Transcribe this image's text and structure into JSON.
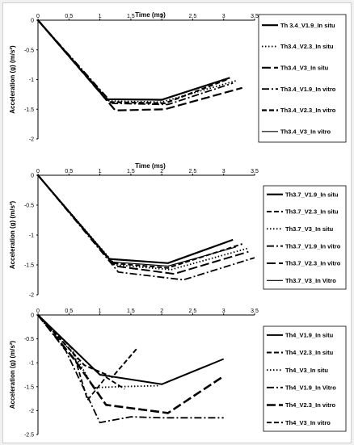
{
  "chart_data": [
    {
      "type": "line",
      "title": "",
      "xlabel": "Time (ms)",
      "ylabel": "Acceleration (g)  (m/s²)",
      "xlim": [
        0,
        3.5
      ],
      "ylim": [
        -2,
        0
      ],
      "xticks": [
        "0",
        "0.5",
        "1",
        "1.5",
        "2",
        "2.5",
        "3",
        "3.5"
      ],
      "yticks": [
        "0",
        "-0.5",
        "-1",
        "-1.5",
        "-2"
      ],
      "series": [
        {
          "name": "Th 3.4_V1.9_In situ",
          "dash": "solid",
          "width": 2.2,
          "x": [
            0,
            1.1,
            2.0,
            3.1
          ],
          "y": [
            0,
            -1.33,
            -1.34,
            -0.97
          ]
        },
        {
          "name": "Th3.4_V2.3_In situ",
          "dash": "dot",
          "width": 1.8,
          "x": [
            0,
            1.15,
            2.0,
            3.2
          ],
          "y": [
            0,
            -1.36,
            -1.38,
            -1.02
          ]
        },
        {
          "name": "Th3.4_V3_In situ",
          "dash": "longdash",
          "width": 2.2,
          "x": [
            0,
            1.25,
            2.05,
            3.3
          ],
          "y": [
            0,
            -1.52,
            -1.5,
            -1.14
          ]
        },
        {
          "name": "Th3.4_V1.9_In vitro",
          "dash": "dashdot",
          "width": 1.8,
          "x": [
            0,
            1.2,
            2.1,
            3.15
          ],
          "y": [
            0,
            -1.4,
            -1.42,
            -1.06
          ]
        },
        {
          "name": "Th3.4_V2.3_In vitro",
          "dash": "dash",
          "width": 2.2,
          "x": [
            0,
            1.15,
            2.05,
            3.05
          ],
          "y": [
            0,
            -1.38,
            -1.4,
            -1.0
          ]
        },
        {
          "name": "Th3.4_V3_In vitro",
          "dash": "solid",
          "width": 1.2,
          "x": [
            0,
            1.1,
            2.0,
            3.0
          ],
          "y": [
            0,
            -1.33,
            -1.35,
            -1.0
          ]
        }
      ]
    },
    {
      "type": "line",
      "title": "",
      "xlabel": "Time (ms)",
      "ylabel": "Acceleration (g)  (m/s²)",
      "xlim": [
        0,
        3.5
      ],
      "ylim": [
        -2,
        0
      ],
      "xticks": [
        "0",
        "0.5",
        "1",
        "1.5",
        "2",
        "2.5",
        "3",
        "3.5"
      ],
      "yticks": [
        "0",
        "-0.5",
        "-1",
        "-1.5",
        "-2"
      ],
      "series": [
        {
          "name": "Th3.7_V1.9_In situ",
          "dash": "solid",
          "width": 2.2,
          "x": [
            0,
            1.15,
            2.1,
            3.15
          ],
          "y": [
            0,
            -1.4,
            -1.47,
            -1.08
          ]
        },
        {
          "name": "Th3.7_V2.3_In situ",
          "dash": "dash",
          "width": 2.0,
          "x": [
            0,
            1.2,
            2.1,
            3.3
          ],
          "y": [
            0,
            -1.47,
            -1.55,
            -1.15
          ]
        },
        {
          "name": "Th3.7_V3_In situ",
          "dash": "dot",
          "width": 1.8,
          "x": [
            0,
            1.25,
            2.15,
            3.4
          ],
          "y": [
            0,
            -1.5,
            -1.58,
            -1.22
          ]
        },
        {
          "name": "Th3.7_V1.9_In vitro",
          "dash": "dashdot",
          "width": 1.8,
          "x": [
            0,
            1.3,
            2.35,
            3.5
          ],
          "y": [
            0,
            -1.62,
            -1.75,
            -1.38
          ]
        },
        {
          "name": "Th3.7_V2.3_In vitro",
          "dash": "longdash",
          "width": 2.0,
          "x": [
            0,
            1.25,
            2.2,
            3.4
          ],
          "y": [
            0,
            -1.52,
            -1.65,
            -1.28
          ]
        },
        {
          "name": "Th3.7_V3_In Vitro",
          "dash": "solid",
          "width": 1.2,
          "x": [
            0,
            1.2,
            2.1,
            3.2
          ],
          "y": [
            0,
            -1.45,
            -1.52,
            -1.2
          ]
        }
      ]
    },
    {
      "type": "line",
      "title": "",
      "xlabel": "",
      "ylabel": "Acceleration (g)  (m/s²)",
      "xlim": [
        0,
        3.5
      ],
      "ylim": [
        -2.5,
        0
      ],
      "xticks": [
        "0",
        "0.5",
        "1",
        "1.5",
        "2",
        "2.5",
        "3",
        "3.5"
      ],
      "yticks": [
        "0",
        "-0.5",
        "-1",
        "-1.5",
        "-2",
        "-2.5"
      ],
      "series": [
        {
          "name": "Th4_V1.9_In situ",
          "dash": "solid",
          "width": 2.0,
          "x": [
            0,
            1.0,
            2.0,
            3.0
          ],
          "y": [
            0,
            -1.25,
            -1.45,
            -0.92
          ]
        },
        {
          "name": "Th4_V2.3_In situ",
          "dash": "dash",
          "width": 2.0,
          "x": [
            0,
            0.75,
            1.2,
            1.6
          ],
          "y": [
            0,
            -1.05,
            -1.3,
            -0.7
          ]
        },
        {
          "name": "Th4_V3_In situ",
          "dash": "dot",
          "width": 1.8,
          "x": [
            0,
            0.6,
            0.9,
            1.3,
            1.95
          ],
          "y": [
            0,
            -0.85,
            -1.52,
            -1.5,
            -1.48
          ]
        },
        {
          "name": "Th4_V1.9_In Vitro",
          "dash": "dashdot",
          "width": 1.8,
          "x": [
            0,
            0.45,
            1.0,
            1.5,
            2.0,
            3.0
          ],
          "y": [
            0,
            -0.75,
            -2.25,
            -2.13,
            -2.15,
            -2.15
          ]
        },
        {
          "name": "Th4_V2.3_In vitro",
          "dash": "longdash",
          "width": 2.6,
          "x": [
            0,
            0.6,
            1.1,
            2.1,
            3.0
          ],
          "y": [
            0,
            -0.95,
            -1.88,
            -2.05,
            -1.28
          ]
        },
        {
          "name": "Th4_V3_In vitro",
          "dash": "dash",
          "width": 1.8,
          "x": [
            0,
            0.55,
            0.8,
            1.1,
            1.4
          ],
          "y": [
            0,
            -0.7,
            -1.78,
            -1.3,
            -1.55
          ]
        }
      ]
    }
  ]
}
